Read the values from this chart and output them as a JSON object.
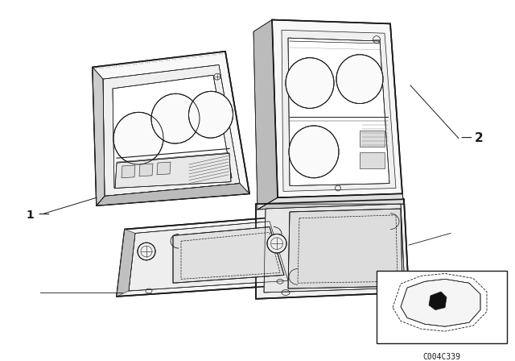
{
  "bg_color": "#ffffff",
  "line_color": "#1a1a1a",
  "code_text": "C004C339",
  "lw": 0.7,
  "lw_thick": 1.2,
  "lw_thin": 0.4
}
